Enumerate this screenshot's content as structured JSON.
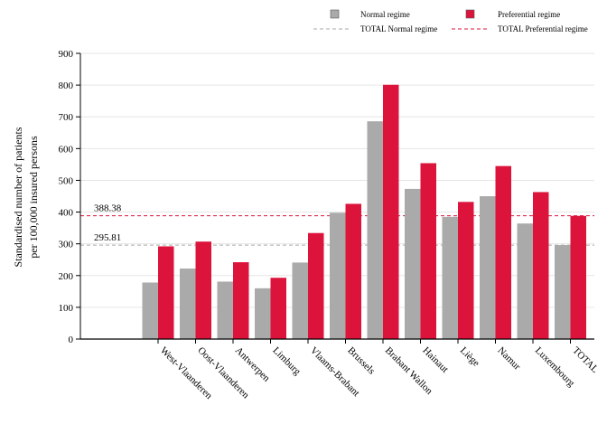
{
  "chart_data": {
    "type": "bar",
    "categories": [
      "West-Vlaanderen",
      "Oost-Vlaanderen",
      "Antwerpen",
      "Limburg",
      "Vlaams-Brabant",
      "Brussels",
      "Brabant Wallon",
      "Hainaut",
      "Liège",
      "Namur",
      "Luxembourg",
      "TOTAL"
    ],
    "series": [
      {
        "name": "Normal regime",
        "color": "#aaaaaa",
        "values": [
          178,
          222,
          181,
          160,
          241,
          398,
          686,
          473,
          385,
          450,
          364,
          296
        ]
      },
      {
        "name": "Preferential regime",
        "color": "#dc143c",
        "values": [
          292,
          307,
          242,
          193,
          334,
          426,
          801,
          554,
          432,
          545,
          463,
          388
        ]
      }
    ],
    "reference_lines": [
      {
        "name": "TOTAL Normal regime",
        "value": 295.81,
        "label": "295.81",
        "color": "#aaaaaa"
      },
      {
        "name": "TOTAL Preferential regime",
        "value": 388.38,
        "label": "388.38",
        "color": "#dc143c"
      }
    ],
    "ylabel_lines": [
      "Standardised number of patients",
      "per 100,000 insured persons"
    ],
    "ylim": [
      0,
      900
    ],
    "yticks": [
      "0",
      "100",
      "200",
      "300",
      "400",
      "500",
      "600",
      "700",
      "800",
      "900"
    ],
    "legend_position": "top-right",
    "grid": true
  }
}
